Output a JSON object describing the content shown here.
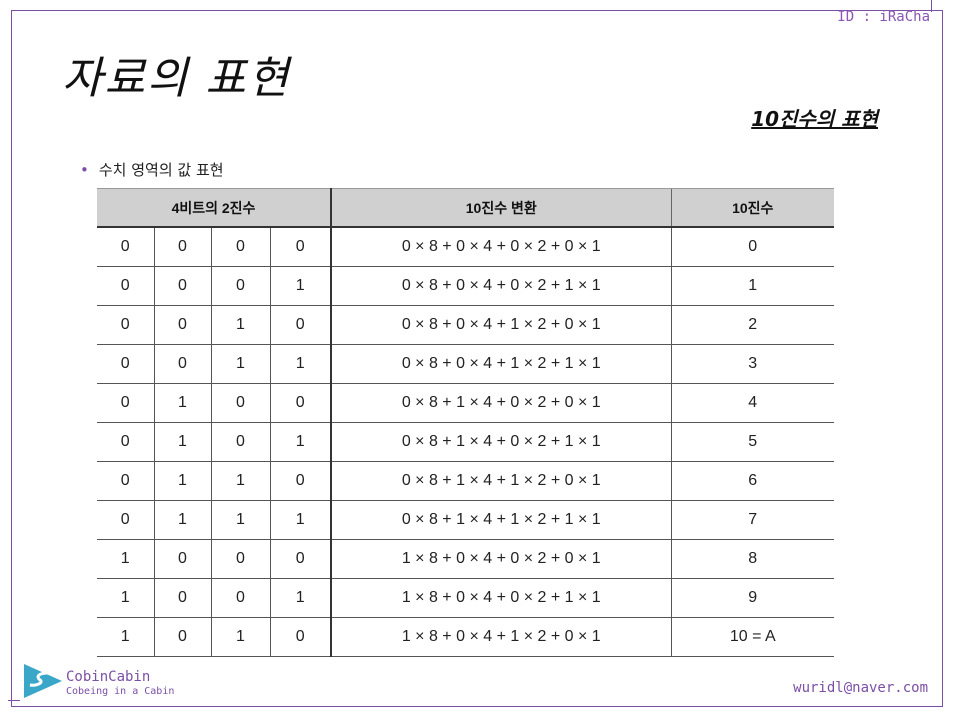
{
  "header": {
    "id_label": "ID : iRaCha"
  },
  "slide": {
    "title": "자료의 표현",
    "subtitle": "10진수의 표현",
    "bullet": "수치 영역의 값 표현"
  },
  "table": {
    "headers": [
      "4비트의 2진수",
      "10진수 변환",
      "10진수"
    ],
    "rows": [
      {
        "bits": [
          "0",
          "0",
          "0",
          "0"
        ],
        "conv": "0 × 8 + 0 × 4 + 0 × 2 + 0 × 1",
        "dec": "0"
      },
      {
        "bits": [
          "0",
          "0",
          "0",
          "1"
        ],
        "conv": "0 × 8 + 0 × 4 + 0 × 2 + 1 × 1",
        "dec": "1"
      },
      {
        "bits": [
          "0",
          "0",
          "1",
          "0"
        ],
        "conv": "0 × 8 + 0 × 4 + 1 × 2 + 0 × 1",
        "dec": "2"
      },
      {
        "bits": [
          "0",
          "0",
          "1",
          "1"
        ],
        "conv": "0 × 8 + 0 × 4 + 1 × 2 + 1 × 1",
        "dec": "3"
      },
      {
        "bits": [
          "0",
          "1",
          "0",
          "0"
        ],
        "conv": "0 × 8 + 1 × 4 + 0 × 2 + 0 × 1",
        "dec": "4"
      },
      {
        "bits": [
          "0",
          "1",
          "0",
          "1"
        ],
        "conv": "0 × 8 + 1 × 4 + 0 × 2 + 1 × 1",
        "dec": "5"
      },
      {
        "bits": [
          "0",
          "1",
          "1",
          "0"
        ],
        "conv": "0 × 8 + 1 × 4 + 1 × 2 + 0 × 1",
        "dec": "6"
      },
      {
        "bits": [
          "0",
          "1",
          "1",
          "1"
        ],
        "conv": "0 × 8 + 1 × 4 + 1 × 2 + 1 × 1",
        "dec": "7"
      },
      {
        "bits": [
          "1",
          "0",
          "0",
          "0"
        ],
        "conv": "1 × 8 + 0 × 4 + 0 × 2 + 0 × 1",
        "dec": "8"
      },
      {
        "bits": [
          "1",
          "0",
          "0",
          "1"
        ],
        "conv": "1 × 8 + 0 × 4 + 0 × 2 + 1 × 1",
        "dec": "9"
      },
      {
        "bits": [
          "1",
          "0",
          "1",
          "0"
        ],
        "conv": "1 × 8 + 0 × 4 + 1 × 2 + 0 × 1",
        "dec": "10 = A"
      }
    ]
  },
  "footer": {
    "brand_name": "CobinCabin",
    "brand_tagline": "Cobeing in a Cabin",
    "email": "wuridl@naver.com",
    "logo_icon": "cobincabin-logo-icon"
  },
  "colors": {
    "accent": "#7b4fa6",
    "header_bg": "#d0d0d0",
    "logo": "#3aa7c9"
  }
}
